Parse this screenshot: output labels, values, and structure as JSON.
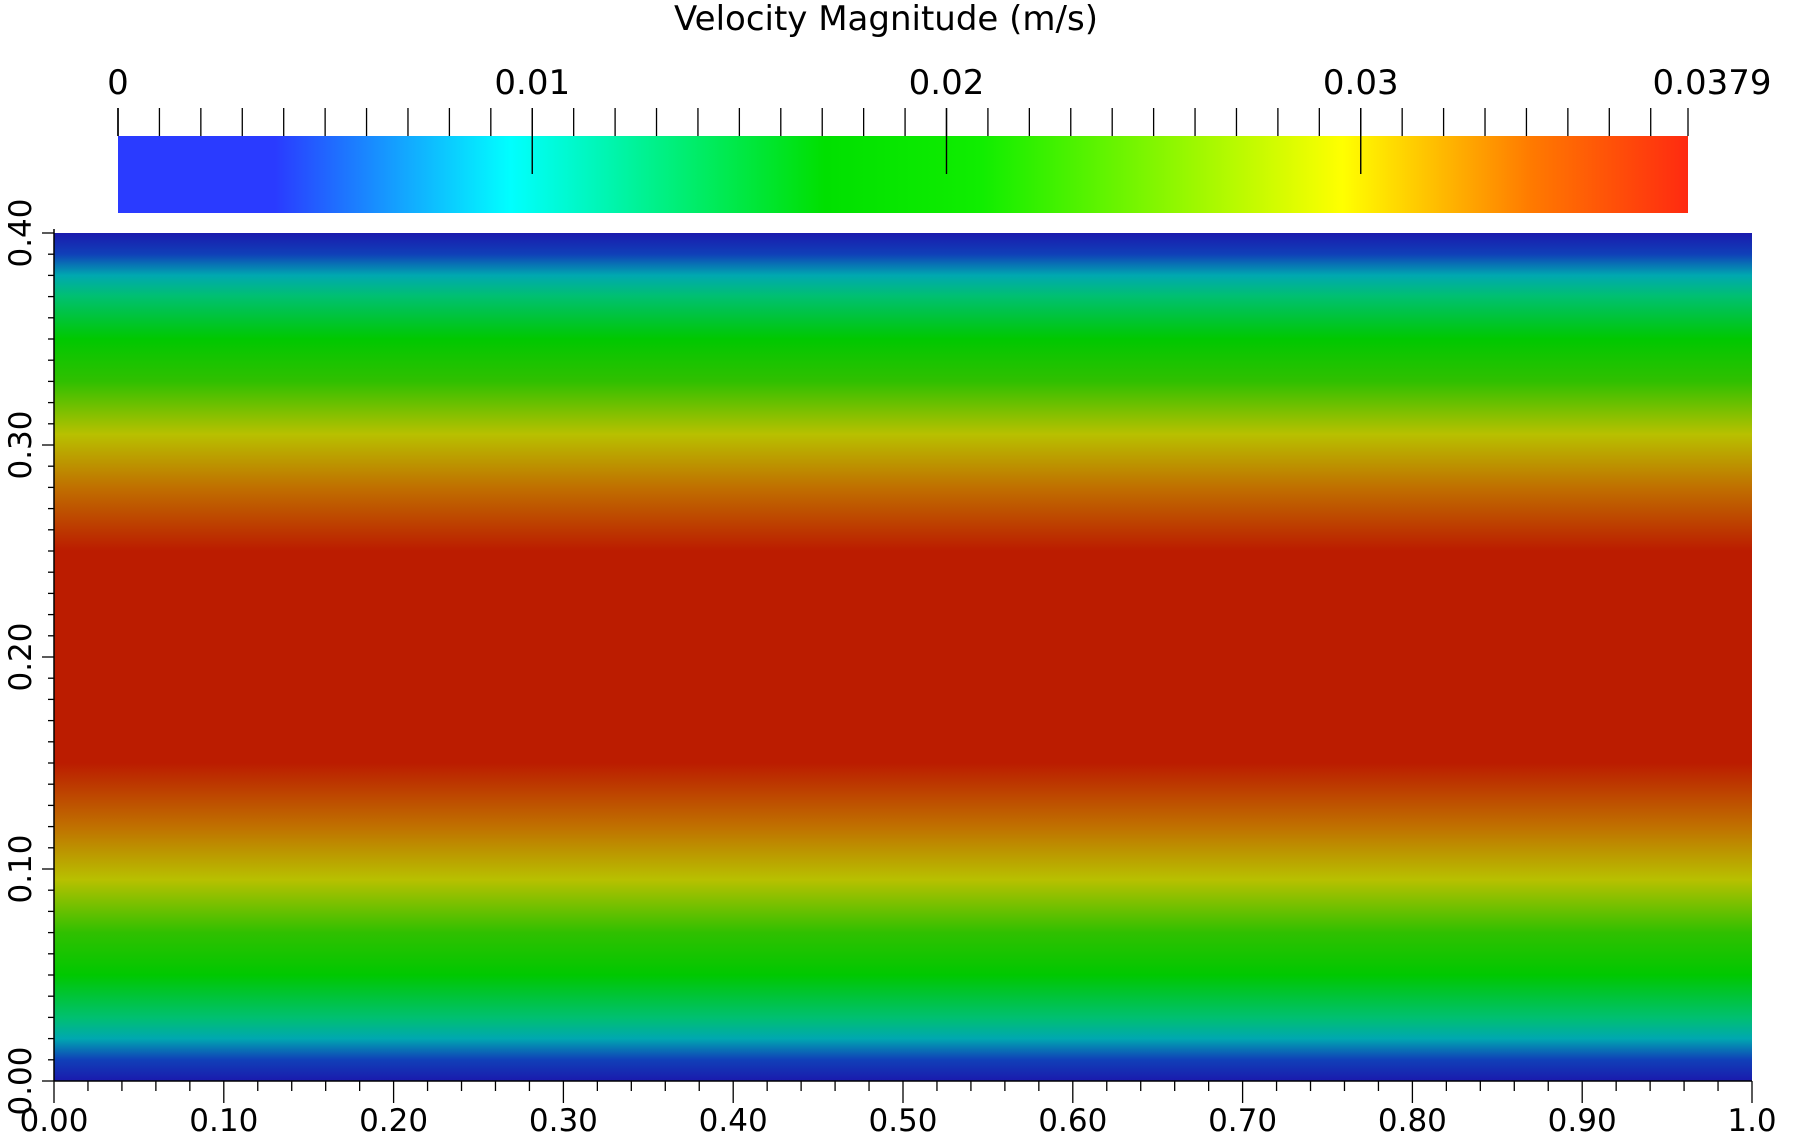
{
  "chart_data": {
    "type": "heatmap",
    "title": "",
    "colorbar": {
      "label": "Velocity Magnitude (m/s)",
      "range": [
        0,
        0.0379
      ],
      "tick_labels": [
        "0",
        "0.01",
        "0.02",
        "0.03",
        "0.0379"
      ],
      "tick_values": [
        0,
        0.01,
        0.02,
        0.03,
        0.0379
      ],
      "minor_step": 0.001,
      "colormap": [
        [
          0.0,
          "#2a3bff"
        ],
        [
          0.1,
          "#2a3bff"
        ],
        [
          0.25,
          "#00ffff"
        ],
        [
          0.45,
          "#00e000"
        ],
        [
          0.55,
          "#10ee00"
        ],
        [
          0.78,
          "#ffff00"
        ],
        [
          0.9,
          "#ff7a00"
        ],
        [
          1.0,
          "#ff2a10"
        ]
      ]
    },
    "xaxis": {
      "label": "",
      "range": [
        0,
        1.0
      ],
      "tick_labels": [
        "0.00",
        "0.10",
        "0.20",
        "0.30",
        "0.40",
        "0.50",
        "0.60",
        "0.70",
        "0.80",
        "0.90",
        "1.0"
      ],
      "minor_step": 0.02
    },
    "yaxis": {
      "label": "",
      "range": [
        0,
        0.4
      ],
      "tick_labels": [
        "0.00",
        "0.10",
        "0.20",
        "0.30",
        "0.40"
      ],
      "minor_step": 0.01
    },
    "field": {
      "description_axis": "y",
      "profile": [
        {
          "y": 0.0,
          "color": "#1a1aad"
        },
        {
          "y": 0.01,
          "color": "#1040b8"
        },
        {
          "y": 0.02,
          "color": "#00a8b0"
        },
        {
          "y": 0.03,
          "color": "#00c070"
        },
        {
          "y": 0.05,
          "color": "#00c800"
        },
        {
          "y": 0.07,
          "color": "#30c000"
        },
        {
          "y": 0.095,
          "color": "#b8c000"
        },
        {
          "y": 0.12,
          "color": "#c07000"
        },
        {
          "y": 0.15,
          "color": "#bb1c00"
        },
        {
          "y": 0.25,
          "color": "#bb1c00"
        },
        {
          "y": 0.28,
          "color": "#c07000"
        },
        {
          "y": 0.305,
          "color": "#b8c000"
        },
        {
          "y": 0.33,
          "color": "#30c000"
        },
        {
          "y": 0.35,
          "color": "#00c800"
        },
        {
          "y": 0.37,
          "color": "#00c070"
        },
        {
          "y": 0.38,
          "color": "#00a8b0"
        },
        {
          "y": 0.39,
          "color": "#1040b8"
        },
        {
          "y": 0.4,
          "color": "#1a1aad"
        }
      ]
    }
  }
}
